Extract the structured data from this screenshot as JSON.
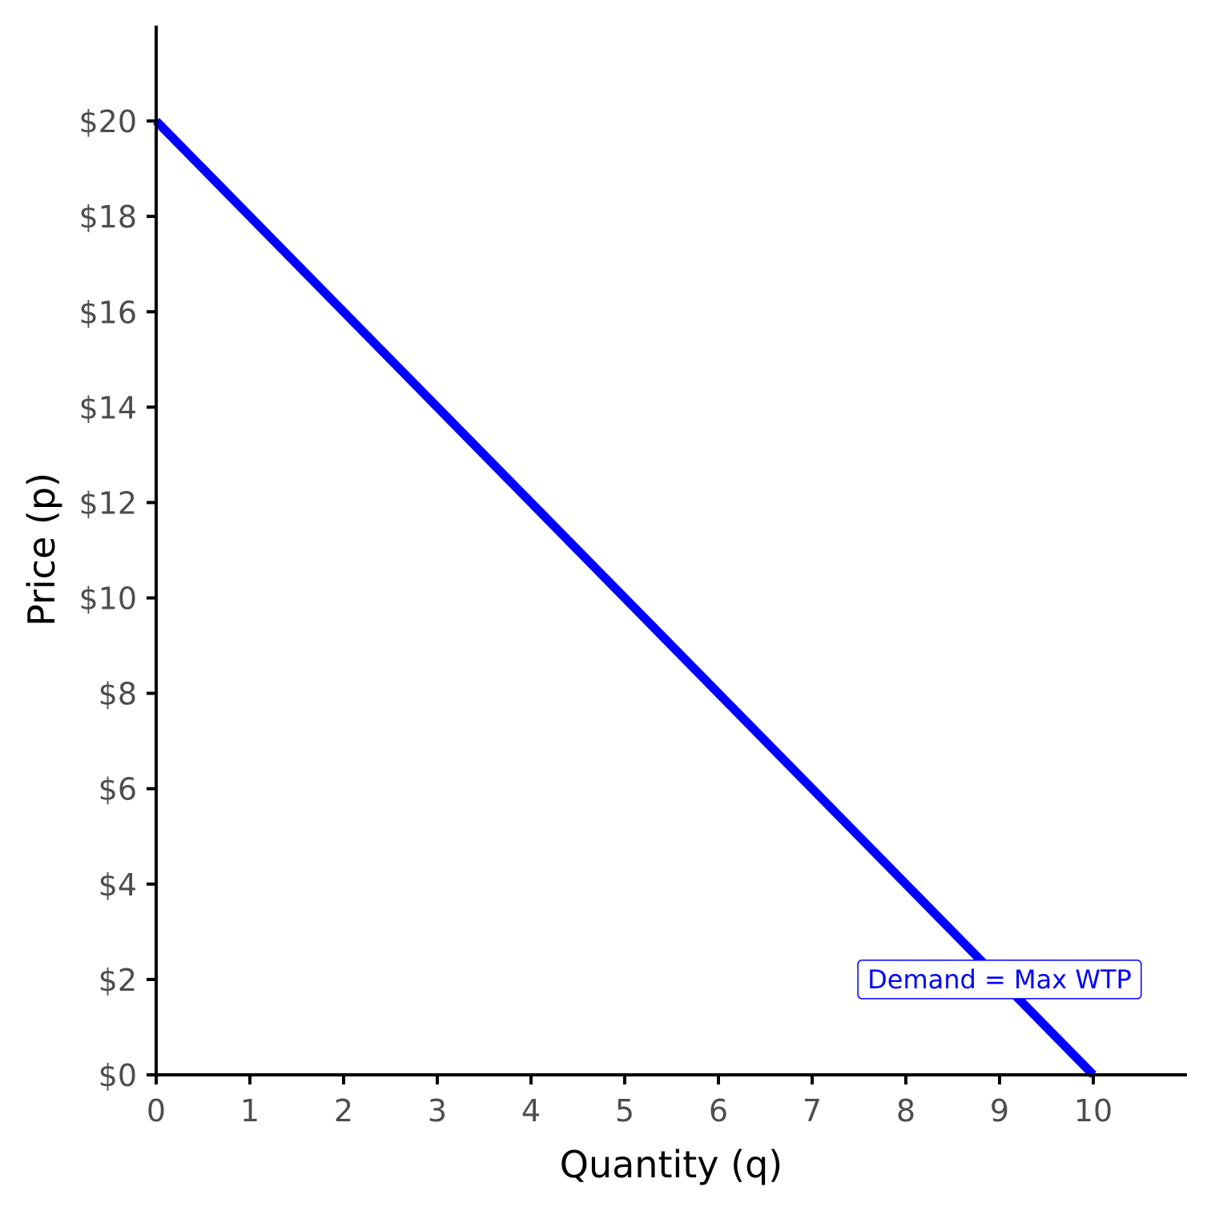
{
  "chart_data": {
    "type": "line",
    "title": "",
    "xlabel": "Quantity (q)",
    "ylabel": "Price (p)",
    "xlim": [
      0,
      11
    ],
    "ylim": [
      0,
      22
    ],
    "x_ticks": [
      0,
      1,
      2,
      3,
      4,
      5,
      6,
      7,
      8,
      9,
      10
    ],
    "x_tick_labels": [
      "0",
      "1",
      "2",
      "3",
      "4",
      "5",
      "6",
      "7",
      "8",
      "9",
      "10"
    ],
    "y_ticks": [
      0,
      2,
      4,
      6,
      8,
      10,
      12,
      14,
      16,
      18,
      20
    ],
    "y_tick_labels": [
      "$0",
      "$2",
      "$4",
      "$6",
      "$8",
      "$10",
      "$12",
      "$14",
      "$16",
      "$18",
      "$20"
    ],
    "grid": false,
    "series": [
      {
        "x": [
          0,
          10
        ],
        "y": [
          20,
          0
        ],
        "color": "#0000ff"
      }
    ],
    "annotations": [
      {
        "text": "Demand = Max WTP",
        "x": 9,
        "y": 2,
        "color": "#0000ff"
      }
    ]
  }
}
